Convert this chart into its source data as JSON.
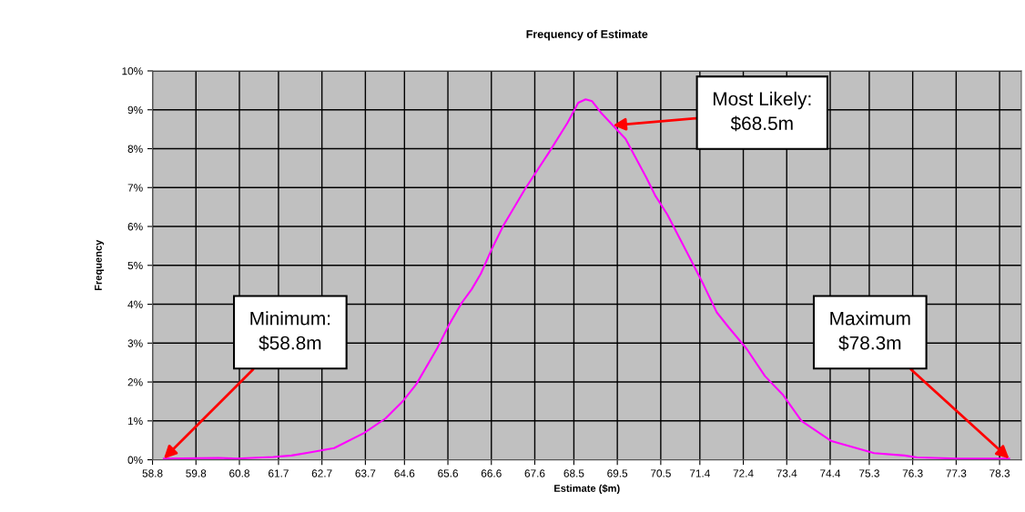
{
  "chart_data": {
    "type": "line",
    "title": "Frequency of Estimate",
    "xlabel": "Estimate ($m)",
    "ylabel": "Frequency",
    "x": [
      59.06,
      60.32,
      60.74,
      61.58,
      62.0,
      62.42,
      62.98,
      63.67,
      64.16,
      64.58,
      64.87,
      65.35,
      65.62,
      65.91,
      66.15,
      66.36,
      66.61,
      66.88,
      67.38,
      67.93,
      68.35,
      68.6,
      68.77,
      68.92,
      69.12,
      69.69,
      70.17,
      70.38,
      70.65,
      71.16,
      71.49,
      71.79,
      72.06,
      72.48,
      72.9,
      73.32,
      73.74,
      74.43,
      75.41,
      76.11,
      76.4,
      77.36,
      78.52
    ],
    "series": [
      {
        "color": "#ff00ff",
        "values": [
          0.03,
          0.05,
          0.03,
          0.07,
          0.11,
          0.19,
          0.3,
          0.69,
          1.06,
          1.53,
          1.94,
          2.86,
          3.46,
          4.02,
          4.39,
          4.79,
          5.42,
          6.03,
          6.97,
          7.91,
          8.66,
          9.18,
          9.27,
          9.22,
          8.93,
          8.25,
          7.25,
          6.78,
          6.31,
          5.21,
          4.49,
          3.79,
          3.41,
          2.85,
          2.15,
          1.66,
          1.0,
          0.48,
          0.17,
          0.11,
          0.06,
          0.03,
          0.03
        ]
      }
    ],
    "xlim": [
      58.8,
      78.8
    ],
    "xticks": [
      58.8,
      59.8,
      60.8,
      61.7,
      62.7,
      63.7,
      64.6,
      65.6,
      66.6,
      67.6,
      68.5,
      69.5,
      70.5,
      71.4,
      72.4,
      73.4,
      74.4,
      75.3,
      76.3,
      77.3,
      78.3
    ],
    "ylim": [
      0,
      10
    ],
    "yticks": [
      {
        "value": 0,
        "label": "0%"
      },
      {
        "value": 1,
        "label": "1%"
      },
      {
        "value": 2,
        "label": "2%"
      },
      {
        "value": 3,
        "label": "3%"
      },
      {
        "value": 4,
        "label": "4%"
      },
      {
        "value": 5,
        "label": "5%"
      },
      {
        "value": 6,
        "label": "6%"
      },
      {
        "value": 7,
        "label": "7%"
      },
      {
        "value": 8,
        "label": "8%"
      },
      {
        "value": 9,
        "label": "9%"
      },
      {
        "value": 10,
        "label": "10%"
      }
    ],
    "grid": true,
    "marker": "none",
    "line_style": "solid",
    "annotations": [
      {
        "text": "Minimum:\n$58.8m",
        "x": 59.06,
        "y": 0.03
      },
      {
        "text": "Most Likely:\n$68.5m",
        "x": 69.4,
        "y": 8.6
      },
      {
        "text": "Maximum\n$78.3m",
        "x": 78.52,
        "y": 0.03
      }
    ]
  }
}
